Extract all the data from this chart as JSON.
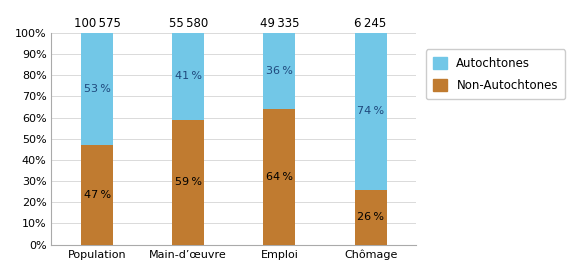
{
  "categories": [
    "Population",
    "Main-d’œuvre",
    "Emploi",
    "Chômage"
  ],
  "totals": [
    "100 575",
    "55 580",
    "49 335",
    "6 245"
  ],
  "non_autochtones": [
    47,
    59,
    64,
    26
  ],
  "autochtones": [
    53,
    41,
    36,
    74
  ],
  "color_autochtones": "#72C7E7",
  "color_non_autochtones": "#C07B30",
  "legend_autochtones": "Autochtones",
  "legend_non_autochtones": "Non-Autochtones",
  "ylim": [
    0,
    100
  ],
  "yticks": [
    0,
    10,
    20,
    30,
    40,
    50,
    60,
    70,
    80,
    90,
    100
  ],
  "ytick_labels": [
    "0%",
    "10%",
    "20%",
    "30%",
    "40%",
    "50%",
    "60%",
    "70%",
    "80%",
    "90%",
    "100%"
  ],
  "bar_width": 0.35,
  "figsize": [
    5.78,
    2.75
  ],
  "dpi": 100,
  "background_color": "#ffffff",
  "label_fontsize": 8,
  "tick_fontsize": 8,
  "legend_fontsize": 8.5,
  "total_fontsize": 8.5,
  "label_color_non": "#000000",
  "label_color_auto": "#000000"
}
